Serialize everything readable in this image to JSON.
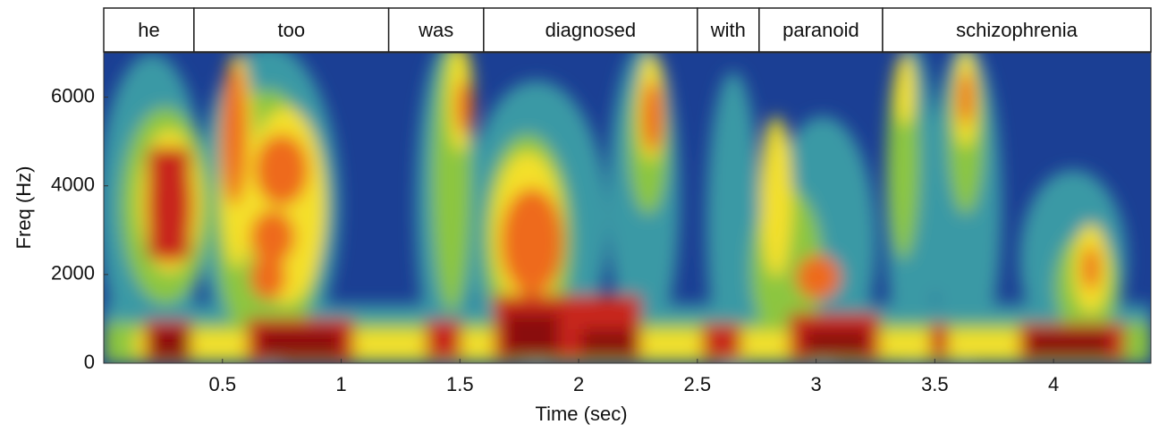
{
  "chart_data": {
    "type": "spectrogram",
    "xlabel": "Time (sec)",
    "ylabel": "Freq (Hz)",
    "xlim": [
      0,
      4.41
    ],
    "xticks": [
      0.5,
      1,
      1.5,
      2,
      2.5,
      3,
      3.5,
      4
    ],
    "ylim": [
      0,
      7000
    ],
    "yticks": [
      0,
      2000,
      4000,
      6000
    ],
    "words": [
      {
        "label": "he",
        "start": 0,
        "end": 0.38
      },
      {
        "label": "too",
        "start": 0.38,
        "end": 1.2
      },
      {
        "label": "was",
        "start": 1.2,
        "end": 1.6
      },
      {
        "label": "diagnosed",
        "start": 1.6,
        "end": 2.5
      },
      {
        "label": "with",
        "start": 2.5,
        "end": 2.76
      },
      {
        "label": "paranoid",
        "start": 2.76,
        "end": 3.28
      },
      {
        "label": "schizophrenia",
        "start": 3.28,
        "end": 4.41
      }
    ]
  }
}
